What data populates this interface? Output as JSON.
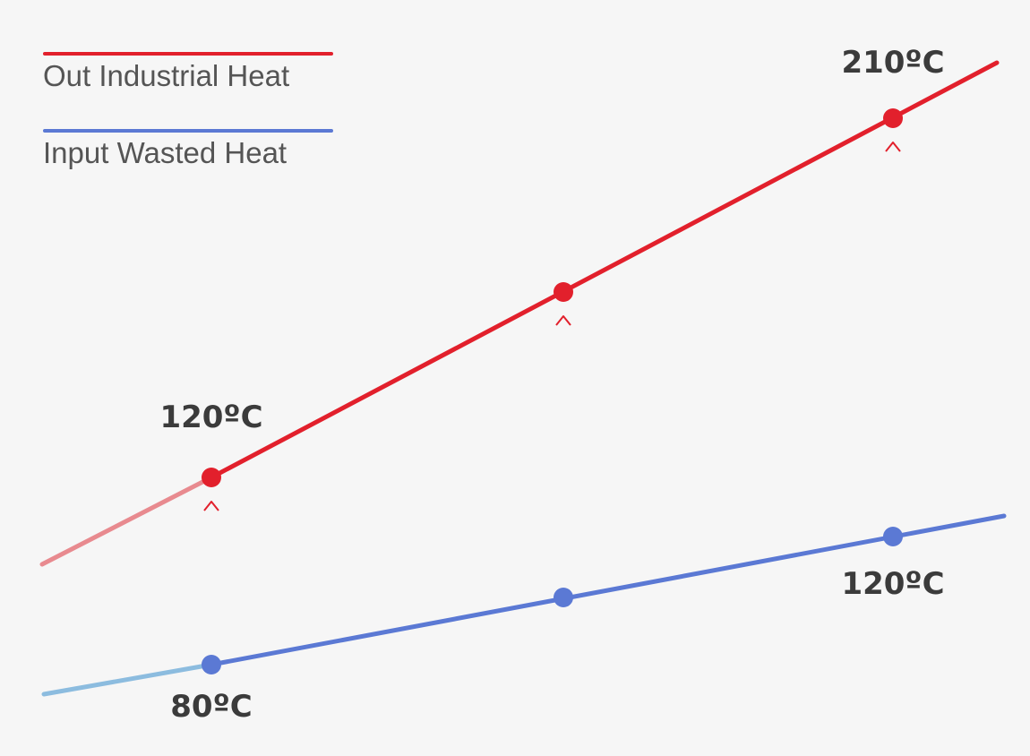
{
  "legend": {
    "output_label": "Out Industrial Heat",
    "input_label": "Input Wasted Heat"
  },
  "labels": {
    "out_start": "120ºC",
    "out_end": "210ºC",
    "in_start": "80ºC",
    "in_end": "120ºC"
  },
  "colors": {
    "output": "#e2202c",
    "output_faded": "#e88a8f",
    "input": "#5b79d4",
    "input_faded": "#8cbcdf",
    "text": "#3b3b3b",
    "legend_text": "#555555",
    "background": "#f6f6f6"
  }
}
